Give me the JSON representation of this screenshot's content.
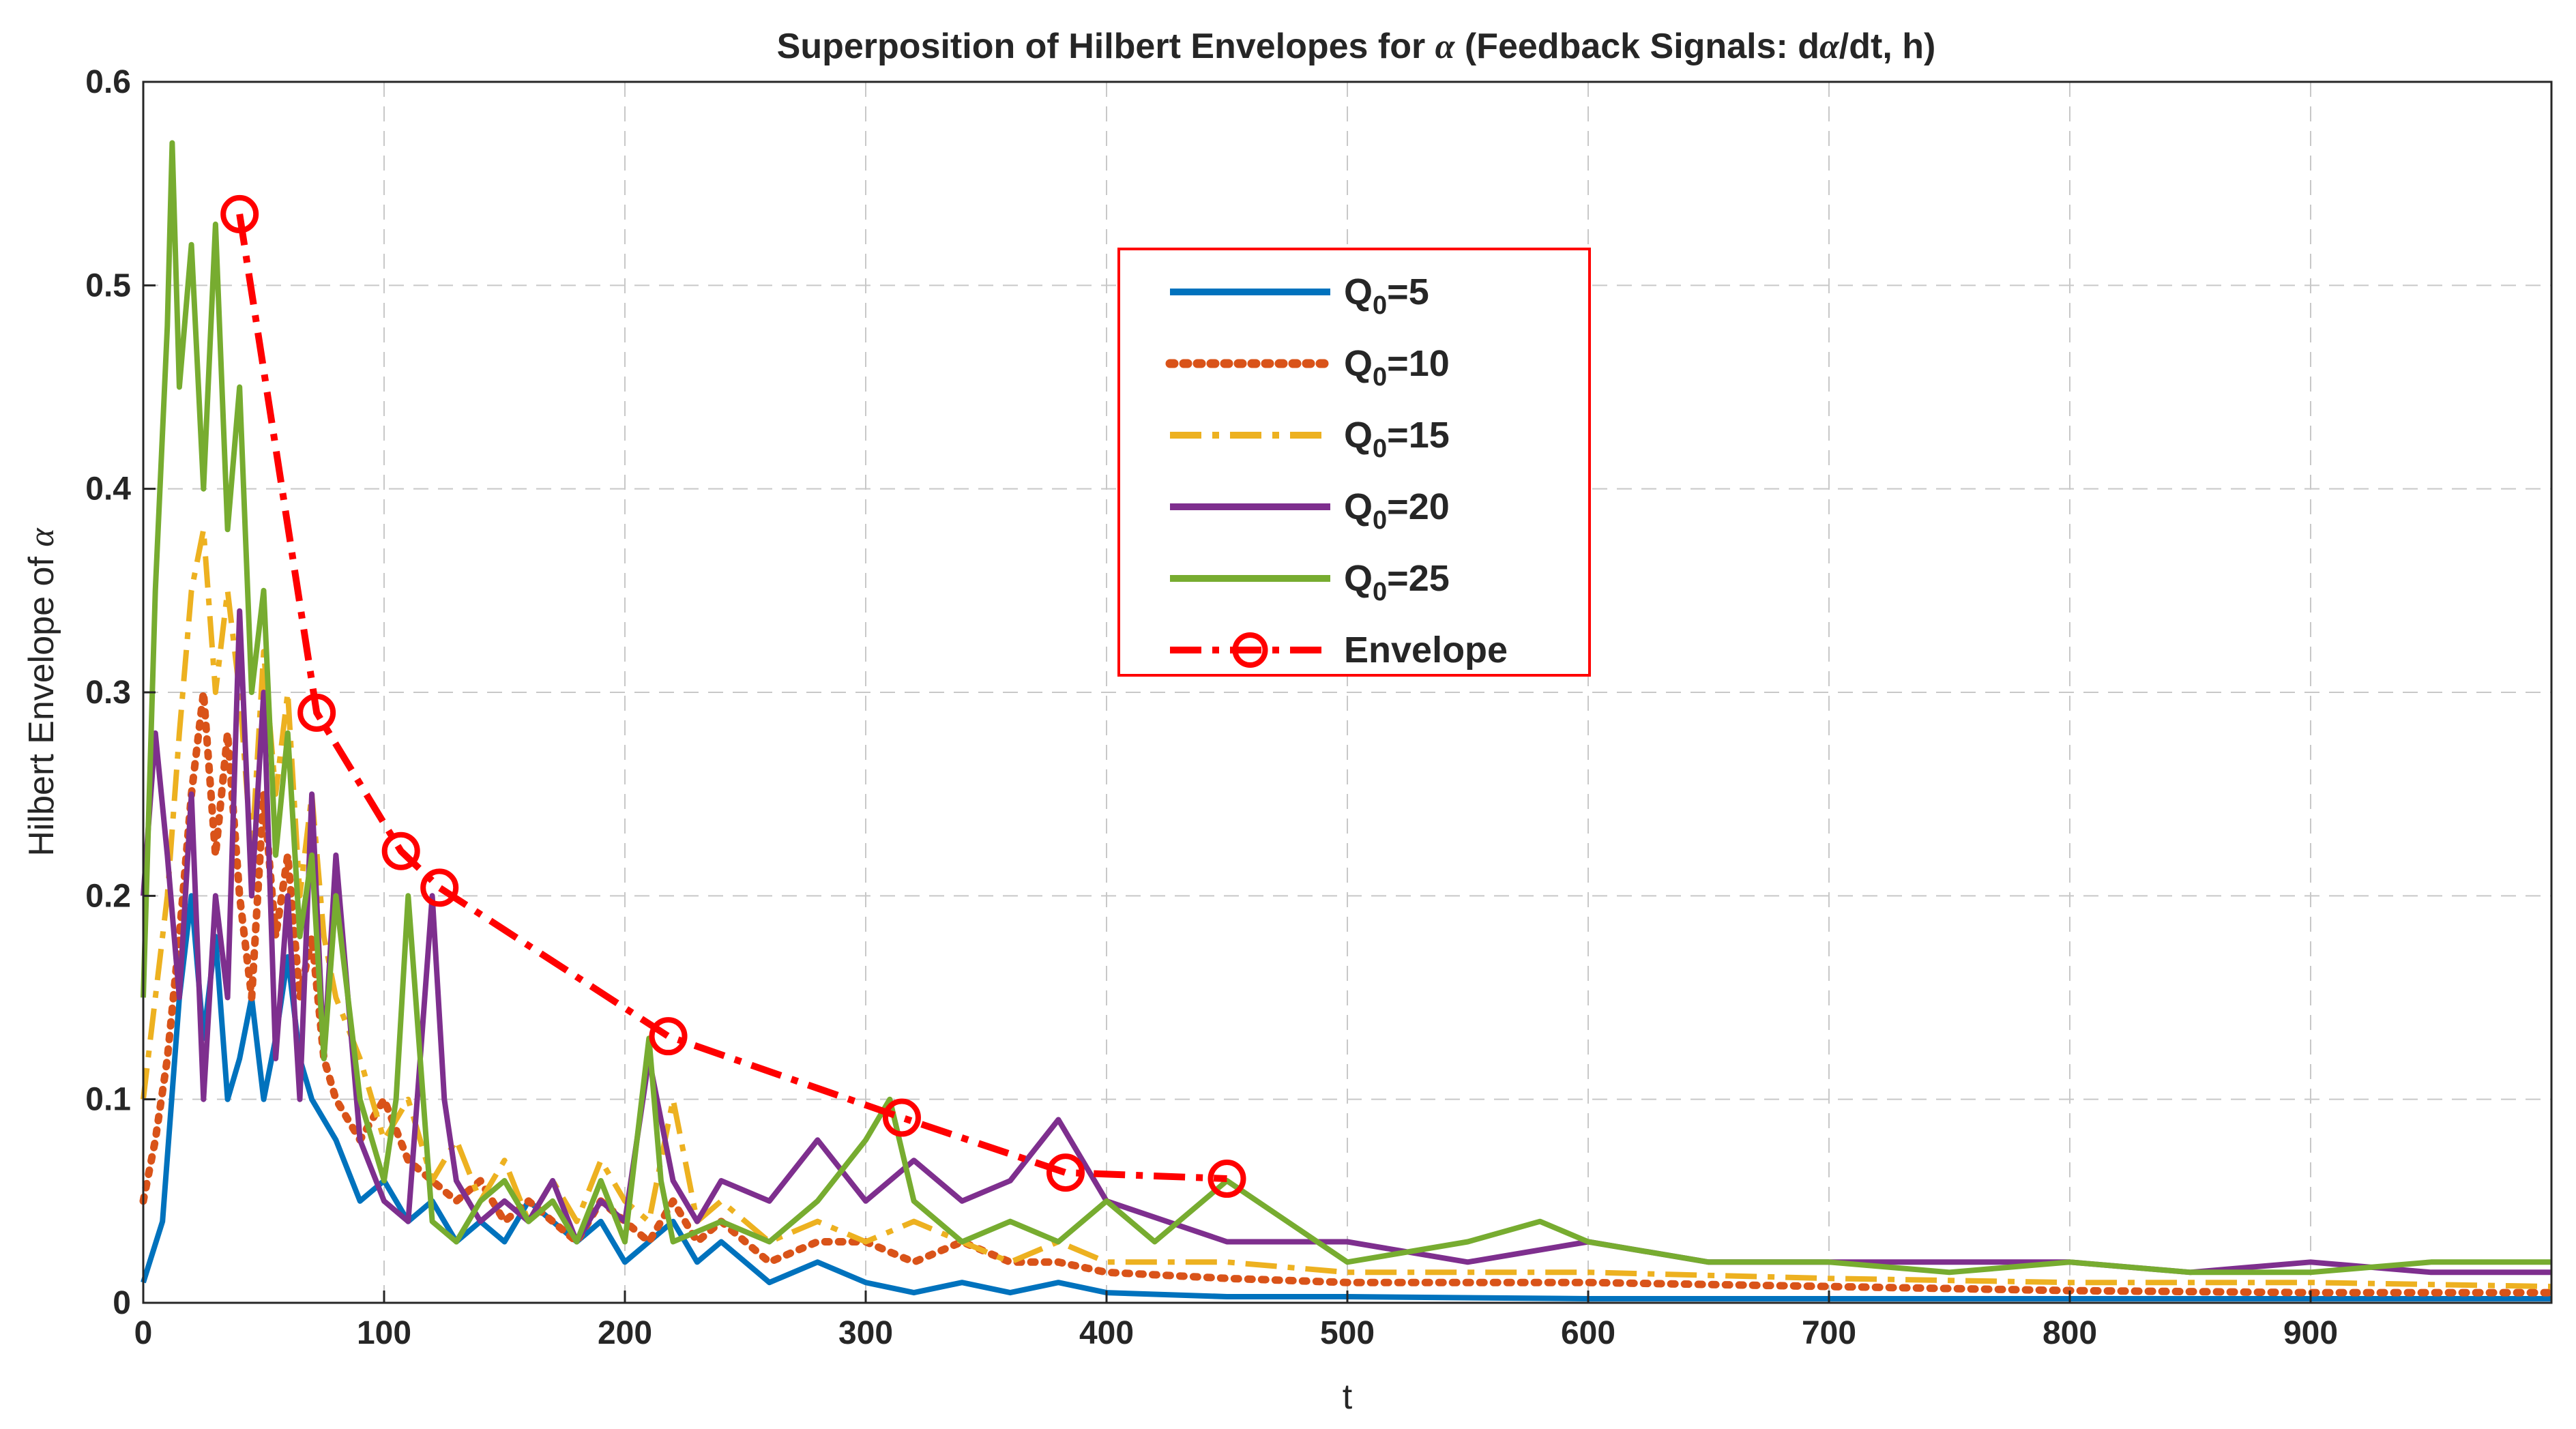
{
  "chart_data": {
    "type": "line",
    "title_parts": {
      "before": "Superposition of Hilbert Envelopes for ",
      "symbol": "α",
      "middle": " (Feedback Signals: d",
      "after": "/dt, h)"
    },
    "xlabel": "t",
    "ylabel_parts": {
      "text": "Hilbert Envelope of ",
      "symbol": "α"
    },
    "xlim": [
      0,
      1000
    ],
    "ylim": [
      0,
      0.6
    ],
    "xticks": [
      0,
      100,
      200,
      300,
      400,
      500,
      600,
      700,
      800,
      900
    ],
    "xtick_labels": [
      "0",
      "100",
      "200",
      "300",
      "400",
      "500",
      "600",
      "700",
      "800",
      "900"
    ],
    "yticks": [
      0,
      0.1,
      0.2,
      0.3,
      0.4,
      0.5,
      0.6
    ],
    "ytick_labels": [
      "0",
      "0.1",
      "0.2",
      "0.3",
      "0.4",
      "0.5",
      "0.6"
    ],
    "grid": true,
    "legend_position": "top-center",
    "series": [
      {
        "name": "Q",
        "name_sub": "0",
        "name_suffix": "=5",
        "color": "#0072BD",
        "style": "solid",
        "x": [
          0,
          8,
          15,
          20,
          25,
          30,
          35,
          40,
          45,
          50,
          55,
          60,
          65,
          70,
          80,
          90,
          100,
          110,
          120,
          130,
          140,
          150,
          160,
          170,
          180,
          190,
          200,
          210,
          220,
          230,
          240,
          250,
          260,
          280,
          300,
          320,
          340,
          360,
          380,
          400,
          450,
          500,
          600,
          700,
          800,
          900,
          1000
        ],
        "y": [
          0.01,
          0.04,
          0.15,
          0.2,
          0.13,
          0.18,
          0.1,
          0.12,
          0.15,
          0.1,
          0.13,
          0.17,
          0.12,
          0.1,
          0.08,
          0.05,
          0.06,
          0.04,
          0.05,
          0.03,
          0.04,
          0.03,
          0.05,
          0.04,
          0.03,
          0.04,
          0.02,
          0.03,
          0.04,
          0.02,
          0.03,
          0.02,
          0.01,
          0.02,
          0.01,
          0.005,
          0.01,
          0.005,
          0.01,
          0.005,
          0.003,
          0.003,
          0.002,
          0.002,
          0.002,
          0.002,
          0.002
        ]
      },
      {
        "name": "Q",
        "name_sub": "0",
        "name_suffix": "=10",
        "color": "#D95319",
        "style": "dotted",
        "x": [
          0,
          5,
          10,
          15,
          20,
          25,
          30,
          35,
          40,
          45,
          50,
          55,
          60,
          65,
          70,
          75,
          80,
          90,
          100,
          110,
          120,
          130,
          140,
          150,
          160,
          170,
          180,
          190,
          200,
          210,
          220,
          230,
          240,
          260,
          280,
          300,
          320,
          340,
          360,
          380,
          400,
          450,
          500,
          550,
          600,
          700,
          800,
          900,
          1000
        ],
        "y": [
          0.05,
          0.08,
          0.12,
          0.18,
          0.25,
          0.3,
          0.22,
          0.28,
          0.2,
          0.15,
          0.25,
          0.18,
          0.22,
          0.15,
          0.18,
          0.12,
          0.1,
          0.08,
          0.1,
          0.07,
          0.06,
          0.05,
          0.06,
          0.04,
          0.05,
          0.04,
          0.03,
          0.05,
          0.04,
          0.03,
          0.05,
          0.03,
          0.04,
          0.02,
          0.03,
          0.03,
          0.02,
          0.03,
          0.02,
          0.02,
          0.015,
          0.012,
          0.01,
          0.01,
          0.01,
          0.008,
          0.006,
          0.005,
          0.005
        ]
      },
      {
        "name": "Q",
        "name_sub": "0",
        "name_suffix": "=15",
        "color": "#EDB120",
        "style": "dashdot",
        "x": [
          0,
          5,
          10,
          15,
          20,
          25,
          30,
          35,
          40,
          45,
          50,
          55,
          60,
          65,
          70,
          75,
          80,
          90,
          100,
          110,
          120,
          130,
          140,
          150,
          160,
          170,
          180,
          190,
          200,
          210,
          220,
          230,
          240,
          260,
          280,
          300,
          320,
          340,
          360,
          380,
          400,
          450,
          500,
          550,
          600,
          700,
          800,
          900,
          1000
        ],
        "y": [
          0.1,
          0.15,
          0.2,
          0.28,
          0.35,
          0.38,
          0.3,
          0.35,
          0.3,
          0.22,
          0.32,
          0.25,
          0.3,
          0.2,
          0.25,
          0.18,
          0.15,
          0.12,
          0.08,
          0.1,
          0.06,
          0.08,
          0.05,
          0.07,
          0.04,
          0.06,
          0.04,
          0.07,
          0.05,
          0.04,
          0.1,
          0.04,
          0.05,
          0.03,
          0.04,
          0.03,
          0.04,
          0.03,
          0.02,
          0.03,
          0.02,
          0.02,
          0.015,
          0.015,
          0.015,
          0.012,
          0.01,
          0.01,
          0.008
        ]
      },
      {
        "name": "Q",
        "name_sub": "0",
        "name_suffix": "=20",
        "color": "#7E2F8E",
        "style": "solid",
        "x": [
          0,
          5,
          10,
          15,
          20,
          25,
          30,
          35,
          40,
          45,
          50,
          55,
          60,
          65,
          70,
          75,
          80,
          90,
          100,
          110,
          115,
          120,
          125,
          130,
          140,
          150,
          160,
          170,
          180,
          190,
          200,
          210,
          215,
          220,
          230,
          240,
          260,
          280,
          300,
          320,
          340,
          360,
          380,
          400,
          450,
          500,
          550,
          600,
          650,
          700,
          750,
          800,
          850,
          900,
          950,
          1000
        ],
        "y": [
          0.2,
          0.28,
          0.22,
          0.15,
          0.25,
          0.1,
          0.2,
          0.15,
          0.34,
          0.2,
          0.3,
          0.12,
          0.2,
          0.1,
          0.25,
          0.12,
          0.22,
          0.08,
          0.05,
          0.04,
          0.12,
          0.2,
          0.1,
          0.06,
          0.04,
          0.05,
          0.04,
          0.06,
          0.03,
          0.05,
          0.04,
          0.12,
          0.09,
          0.06,
          0.04,
          0.06,
          0.05,
          0.08,
          0.05,
          0.07,
          0.05,
          0.06,
          0.09,
          0.05,
          0.03,
          0.03,
          0.02,
          0.03,
          0.02,
          0.02,
          0.02,
          0.02,
          0.015,
          0.02,
          0.015,
          0.015
        ]
      },
      {
        "name": "Q",
        "name_sub": "0",
        "name_suffix": "=25",
        "color": "#77AC30",
        "style": "solid",
        "x": [
          0,
          5,
          10,
          12,
          15,
          20,
          25,
          30,
          35,
          40,
          45,
          50,
          55,
          60,
          65,
          70,
          75,
          80,
          90,
          100,
          105,
          110,
          120,
          130,
          140,
          150,
          160,
          170,
          180,
          190,
          200,
          210,
          215,
          220,
          240,
          260,
          280,
          300,
          310,
          320,
          340,
          360,
          380,
          400,
          420,
          450,
          500,
          550,
          580,
          600,
          650,
          700,
          750,
          800,
          850,
          900,
          950,
          1000
        ],
        "y": [
          0.15,
          0.35,
          0.48,
          0.57,
          0.45,
          0.52,
          0.4,
          0.53,
          0.38,
          0.45,
          0.3,
          0.35,
          0.22,
          0.28,
          0.18,
          0.22,
          0.12,
          0.2,
          0.1,
          0.06,
          0.1,
          0.2,
          0.04,
          0.03,
          0.05,
          0.06,
          0.04,
          0.05,
          0.03,
          0.06,
          0.03,
          0.13,
          0.06,
          0.03,
          0.04,
          0.03,
          0.05,
          0.08,
          0.1,
          0.05,
          0.03,
          0.04,
          0.03,
          0.05,
          0.03,
          0.06,
          0.02,
          0.03,
          0.04,
          0.03,
          0.02,
          0.02,
          0.015,
          0.02,
          0.015,
          0.015,
          0.02,
          0.02
        ]
      },
      {
        "name": "Envelope",
        "name_sub": "",
        "name_suffix": "",
        "color": "#FF0000",
        "style": "dashdot",
        "marker": "circle",
        "x": [
          40,
          72,
          107,
          123,
          218,
          315,
          383,
          450
        ],
        "y": [
          0.535,
          0.29,
          0.222,
          0.204,
          0.131,
          0.091,
          0.064,
          0.061
        ]
      }
    ]
  }
}
